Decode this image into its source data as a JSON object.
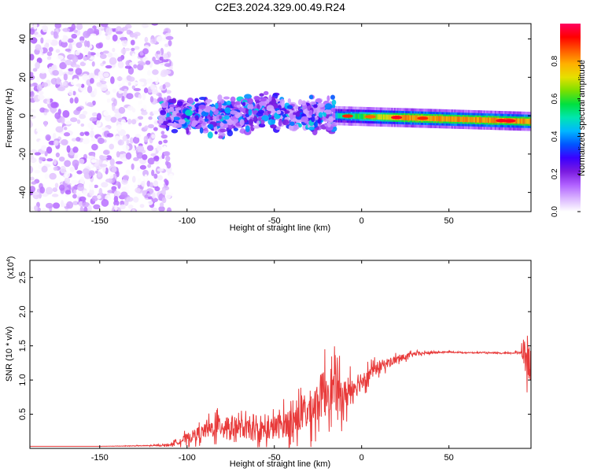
{
  "title": "C2E3.2024.329.00.49.R24",
  "chart_data": [
    {
      "type": "heatmap",
      "xlabel": "Height of straight line (km)",
      "ylabel": "Frequency (Hz)",
      "xlim": [
        -190,
        97
      ],
      "ylim": [
        -50,
        48
      ],
      "xticks": [
        -150,
        -100,
        -50,
        0,
        50
      ],
      "yticks": [
        -40,
        -20,
        0,
        20,
        40
      ],
      "colorbar": {
        "label": "Normalized spectral amplitude",
        "range": [
          0.0,
          1.0
        ],
        "ticks": [
          "0.0",
          "0.2",
          "0.4",
          "0.6",
          "0.8"
        ],
        "colors": [
          "#ffffff",
          "#d9b3ff",
          "#b060ff",
          "#7a1be0",
          "#3a00ff",
          "#0055ff",
          "#00b7ff",
          "#00e6b0",
          "#00e040",
          "#7ae000",
          "#e6e000",
          "#ffb000",
          "#ff5a00",
          "#ff0000",
          "#ff0060"
        ]
      },
      "regions": [
        {
          "x_range": [
            -190,
            -115
          ],
          "freq_range": [
            -50,
            48
          ],
          "peak_amplitude": 0.15
        },
        {
          "x_range": [
            -115,
            -15
          ],
          "freq_range": [
            -12,
            12
          ],
          "peak_amplitude": 0.4
        },
        {
          "x_range": [
            -15,
            97
          ],
          "freq_center_start": 0,
          "freq_center_end": -3,
          "peak_amplitude": 0.9
        }
      ]
    },
    {
      "type": "line",
      "xlabel": "Height of straight line (km)",
      "ylabel": "SNR (10 * v/v)",
      "y_multiplier": "(x10",
      "y_multiplier_exp": "4",
      "xlim": [
        -190,
        97
      ],
      "ylim": [
        0,
        2.75
      ],
      "xticks": [
        -150,
        -100,
        -50,
        0,
        50
      ],
      "yticks": [
        0.5,
        1.0,
        1.5,
        2.0,
        2.5
      ],
      "ytick_labels": [
        "0.5",
        "1.0",
        "1.5",
        "2.0",
        "2.5"
      ],
      "line_color": "#e83a3a",
      "series": [
        {
          "x": [
            -190,
            -150,
            -120,
            -110,
            -100,
            -90,
            -80,
            -70,
            -60,
            -50,
            -40,
            -30,
            -25,
            -20,
            -15,
            -10,
            -5,
            0,
            5,
            10,
            20,
            30,
            40,
            50,
            60,
            70,
            80,
            90,
            93,
            95,
            97
          ],
          "values": [
            0.03,
            0.03,
            0.04,
            0.05,
            0.15,
            0.25,
            0.35,
            0.3,
            0.25,
            0.3,
            0.4,
            0.55,
            0.7,
            0.9,
            0.85,
            0.75,
            0.9,
            1.0,
            1.1,
            1.2,
            1.3,
            1.38,
            1.4,
            1.41,
            1.4,
            1.4,
            1.39,
            1.4,
            1.45,
            1.3,
            1.1
          ],
          "noise_amplitude": [
            0.0,
            0.0,
            0.01,
            0.02,
            0.1,
            0.15,
            0.25,
            0.2,
            0.2,
            0.25,
            0.3,
            0.4,
            0.45,
            0.5,
            0.45,
            0.35,
            0.3,
            0.2,
            0.15,
            0.12,
            0.08,
            0.04,
            0.02,
            0.01,
            0.01,
            0.01,
            0.01,
            0.02,
            0.2,
            0.4,
            0.4
          ]
        }
      ]
    }
  ]
}
